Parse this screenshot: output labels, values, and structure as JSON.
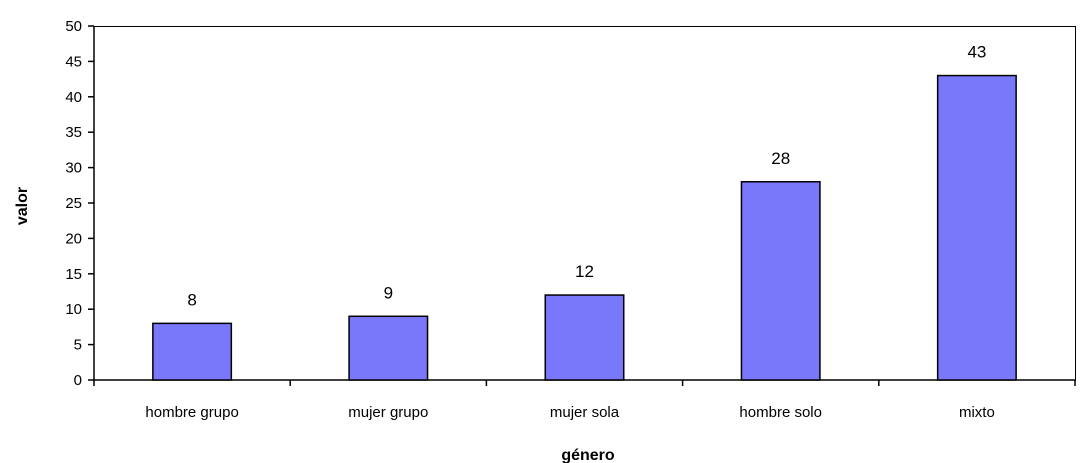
{
  "chart_data": {
    "type": "bar",
    "categories": [
      "hombre grupo",
      "mujer grupo",
      "mujer sola",
      "hombre solo",
      "mixto"
    ],
    "values": [
      8,
      9,
      12,
      28,
      43
    ],
    "data_labels": [
      "8",
      "9",
      "12",
      "28",
      "43"
    ],
    "xlabel": "género",
    "ylabel": "valor",
    "ylim": [
      0,
      50
    ],
    "yticks": [
      0,
      5,
      10,
      15,
      20,
      25,
      30,
      35,
      40,
      45,
      50
    ],
    "grid": false,
    "legend": "none",
    "bar_color": "#7a78fa",
    "bar_border_color": "#000000"
  }
}
